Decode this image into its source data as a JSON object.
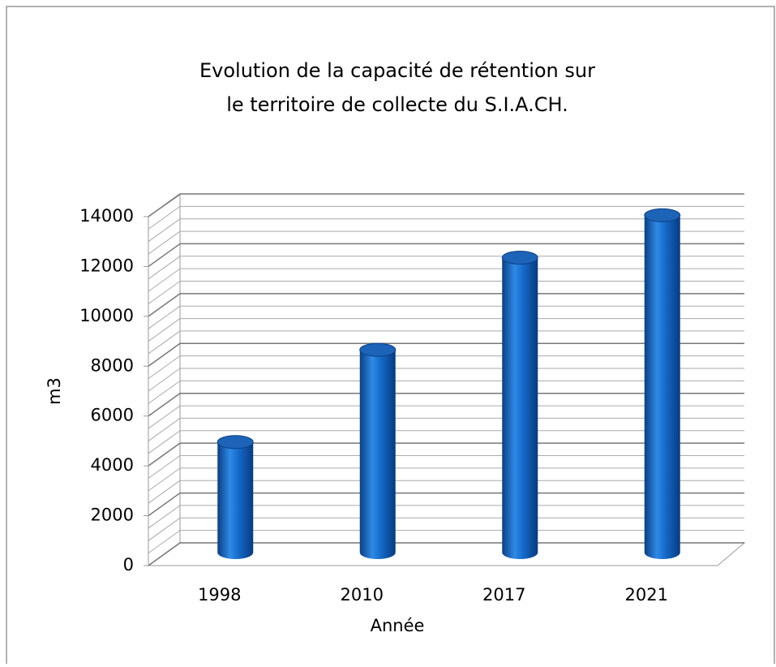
{
  "chart_data": {
    "type": "bar3d",
    "title": [
      "Evolution de la capacité de rétention sur",
      "le territoire de collecte du S.I.A.CH."
    ],
    "xlabel": "Année",
    "ylabel": "m3",
    "categories": [
      "1998",
      "2010",
      "2017",
      "2021"
    ],
    "values": [
      4500,
      8200,
      11900,
      13600
    ],
    "color": "#1469c8",
    "ylim": [
      0,
      14000
    ],
    "yticks": [
      0,
      2000,
      4000,
      6000,
      8000,
      10000,
      12000,
      14000
    ],
    "grid": true
  }
}
